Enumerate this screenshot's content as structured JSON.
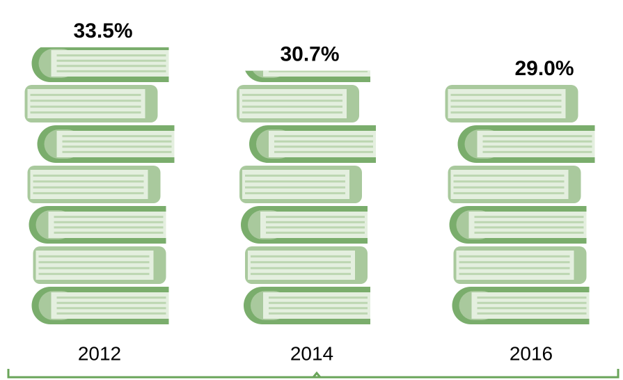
{
  "chart_data": {
    "type": "bar",
    "categories": [
      "2012",
      "2014",
      "2016"
    ],
    "values": [
      33.5,
      30.7,
      29.0
    ],
    "value_labels": [
      "33.5%",
      "30.7%",
      "29.0%"
    ],
    "color": "#7aad6c"
  }
}
